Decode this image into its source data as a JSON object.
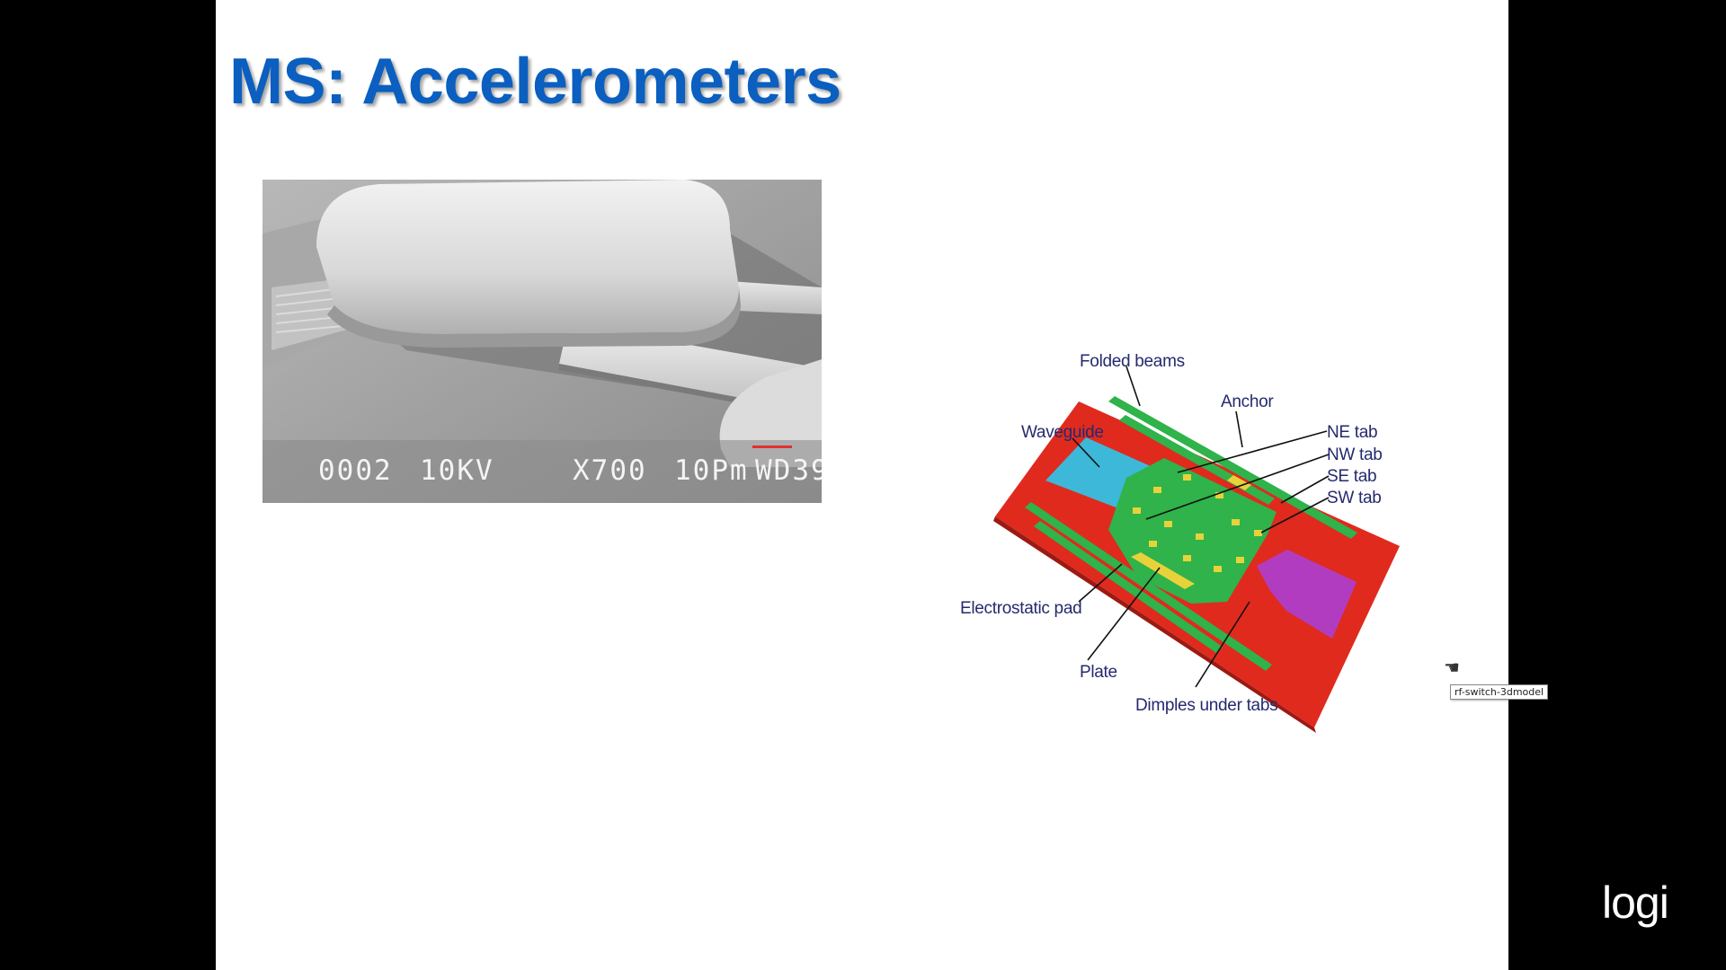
{
  "slide": {
    "title": "MS: Accelerometers"
  },
  "sem_image": {
    "caption": {
      "number": "0002",
      "voltage": "10KV",
      "magnification": "X700",
      "scale": "10Pm",
      "working_distance": "WD39"
    },
    "scale_bar_color": "#e03030"
  },
  "model_image": {
    "labels": {
      "folded_beams": "Folded beams",
      "anchor": "Anchor",
      "waveguide": "Waveguide",
      "ne_tab": "NE tab",
      "nw_tab": "NW tab",
      "se_tab": "SE tab",
      "sw_tab": "SW tab",
      "electrostatic_pad": "Electrostatic pad",
      "plate": "Plate",
      "dimples": "Dimples under tabs"
    },
    "tooltip": "rf-switch-3dmodel",
    "colors": {
      "substrate": "#e02a1e",
      "plate": "#2fb34a",
      "waveguide": "#3db8d8",
      "pad": "#b23cc0",
      "dimples": "#e8d23a",
      "label_text": "#242a6e"
    },
    "cursor_icon": "hand-pointer-icon"
  },
  "brand": {
    "logo_text": "logi"
  },
  "accent_color": "#0a5fc0"
}
